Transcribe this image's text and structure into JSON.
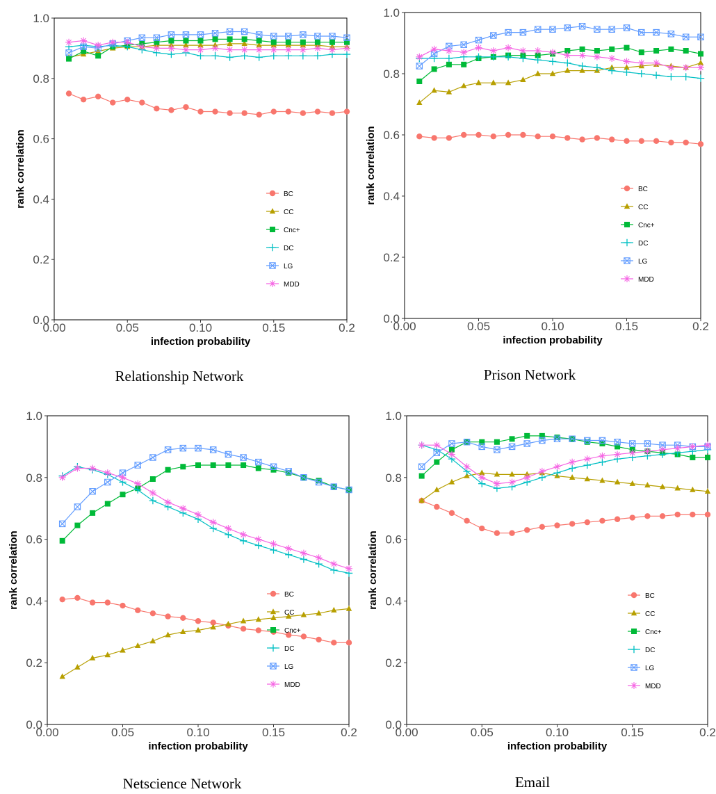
{
  "chart_data": [
    {
      "type": "line",
      "caption": "Relationship Network",
      "xlabel": "infection probability",
      "ylabel": "rank correlation",
      "xlim": [
        0,
        0.2
      ],
      "ylim": [
        0,
        1.0
      ],
      "xticks": [
        "0.00",
        "0.05",
        "0.10",
        "0.15",
        "0.2"
      ],
      "yticks": [
        "0.0",
        "0.2",
        "0.4",
        "0.6",
        "0.8",
        "1.0"
      ],
      "legend_position": "bottom-right",
      "x": [
        0.01,
        0.02,
        0.03,
        0.04,
        0.05,
        0.06,
        0.07,
        0.08,
        0.09,
        0.1,
        0.11,
        0.12,
        0.13,
        0.14,
        0.15,
        0.16,
        0.17,
        0.18,
        0.19,
        0.2
      ],
      "series": [
        {
          "name": "BC",
          "values": [
            0.75,
            0.73,
            0.74,
            0.72,
            0.73,
            0.72,
            0.7,
            0.695,
            0.705,
            0.69,
            0.69,
            0.685,
            0.685,
            0.68,
            0.69,
            0.69,
            0.685,
            0.69,
            0.685,
            0.69
          ]
        },
        {
          "name": "CC",
          "values": [
            0.87,
            0.88,
            0.89,
            0.9,
            0.905,
            0.905,
            0.91,
            0.91,
            0.91,
            0.91,
            0.91,
            0.915,
            0.915,
            0.91,
            0.91,
            0.91,
            0.91,
            0.91,
            0.905,
            0.905
          ]
        },
        {
          "name": "Cnc+",
          "values": [
            0.865,
            0.89,
            0.875,
            0.905,
            0.91,
            0.915,
            0.92,
            0.925,
            0.925,
            0.925,
            0.93,
            0.93,
            0.93,
            0.925,
            0.92,
            0.92,
            0.92,
            0.92,
            0.92,
            0.92
          ]
        },
        {
          "name": "DC",
          "values": [
            0.905,
            0.91,
            0.905,
            0.91,
            0.905,
            0.895,
            0.885,
            0.88,
            0.885,
            0.875,
            0.875,
            0.87,
            0.875,
            0.87,
            0.875,
            0.875,
            0.875,
            0.875,
            0.88,
            0.88
          ]
        },
        {
          "name": "LG",
          "values": [
            0.885,
            0.905,
            0.9,
            0.915,
            0.925,
            0.935,
            0.935,
            0.945,
            0.945,
            0.945,
            0.95,
            0.955,
            0.955,
            0.945,
            0.94,
            0.94,
            0.945,
            0.94,
            0.94,
            0.935
          ]
        },
        {
          "name": "MDD",
          "values": [
            0.92,
            0.925,
            0.91,
            0.92,
            0.92,
            0.905,
            0.9,
            0.9,
            0.895,
            0.895,
            0.9,
            0.895,
            0.895,
            0.895,
            0.895,
            0.895,
            0.895,
            0.9,
            0.895,
            0.9
          ]
        }
      ]
    },
    {
      "type": "line",
      "caption": "Prison Network",
      "xlabel": "infection probability",
      "ylabel": "rank correlation",
      "xlim": [
        0,
        0.2
      ],
      "ylim": [
        0,
        1.0
      ],
      "xticks": [
        "0.00",
        "0.05",
        "0.10",
        "0.15",
        "0.2"
      ],
      "yticks": [
        "0.0",
        "0.2",
        "0.4",
        "0.6",
        "0.8",
        "1.0"
      ],
      "legend_position": "bottom-right",
      "x": [
        0.01,
        0.02,
        0.03,
        0.04,
        0.05,
        0.06,
        0.07,
        0.08,
        0.09,
        0.1,
        0.11,
        0.12,
        0.13,
        0.14,
        0.15,
        0.16,
        0.17,
        0.18,
        0.19,
        0.2
      ],
      "series": [
        {
          "name": "BC",
          "values": [
            0.595,
            0.59,
            0.59,
            0.6,
            0.6,
            0.595,
            0.6,
            0.6,
            0.595,
            0.595,
            0.59,
            0.585,
            0.59,
            0.585,
            0.58,
            0.58,
            0.58,
            0.575,
            0.575,
            0.57
          ]
        },
        {
          "name": "CC",
          "values": [
            0.705,
            0.745,
            0.74,
            0.76,
            0.77,
            0.77,
            0.77,
            0.78,
            0.8,
            0.8,
            0.81,
            0.81,
            0.81,
            0.82,
            0.82,
            0.825,
            0.83,
            0.825,
            0.82,
            0.835
          ]
        },
        {
          "name": "Cnc+",
          "values": [
            0.775,
            0.815,
            0.83,
            0.83,
            0.85,
            0.855,
            0.86,
            0.86,
            0.86,
            0.865,
            0.875,
            0.88,
            0.875,
            0.88,
            0.885,
            0.87,
            0.875,
            0.88,
            0.875,
            0.865
          ]
        },
        {
          "name": "DC",
          "values": [
            0.85,
            0.85,
            0.85,
            0.855,
            0.855,
            0.855,
            0.855,
            0.85,
            0.845,
            0.84,
            0.835,
            0.825,
            0.82,
            0.81,
            0.805,
            0.8,
            0.795,
            0.79,
            0.79,
            0.785
          ]
        },
        {
          "name": "LG",
          "values": [
            0.825,
            0.865,
            0.89,
            0.895,
            0.91,
            0.925,
            0.935,
            0.935,
            0.945,
            0.945,
            0.95,
            0.955,
            0.945,
            0.945,
            0.95,
            0.935,
            0.935,
            0.93,
            0.92,
            0.92
          ]
        },
        {
          "name": "MDD",
          "values": [
            0.855,
            0.88,
            0.875,
            0.87,
            0.885,
            0.875,
            0.885,
            0.875,
            0.875,
            0.87,
            0.86,
            0.86,
            0.855,
            0.85,
            0.84,
            0.835,
            0.835,
            0.82,
            0.82,
            0.82
          ]
        }
      ]
    },
    {
      "type": "line",
      "caption": "Netscience Network",
      "xlabel": "infection probability",
      "ylabel": "rank correlation",
      "xlim": [
        0,
        0.2
      ],
      "ylim": [
        0,
        1.0
      ],
      "xticks": [
        "0.00",
        "0.05",
        "0.10",
        "0.15",
        "0.2"
      ],
      "yticks": [
        "0.0",
        "0.2",
        "0.4",
        "0.6",
        "0.8",
        "1.0"
      ],
      "legend_position": "bottom-right",
      "x": [
        0.01,
        0.02,
        0.03,
        0.04,
        0.05,
        0.06,
        0.07,
        0.08,
        0.09,
        0.1,
        0.11,
        0.12,
        0.13,
        0.14,
        0.15,
        0.16,
        0.17,
        0.18,
        0.19,
        0.2
      ],
      "series": [
        {
          "name": "BC",
          "values": [
            0.405,
            0.41,
            0.395,
            0.395,
            0.385,
            0.37,
            0.36,
            0.35,
            0.345,
            0.335,
            0.33,
            0.32,
            0.31,
            0.305,
            0.3,
            0.29,
            0.285,
            0.275,
            0.265,
            0.265
          ]
        },
        {
          "name": "CC",
          "values": [
            0.155,
            0.185,
            0.215,
            0.225,
            0.24,
            0.255,
            0.27,
            0.29,
            0.3,
            0.305,
            0.315,
            0.325,
            0.335,
            0.34,
            0.345,
            0.35,
            0.355,
            0.36,
            0.37,
            0.375
          ]
        },
        {
          "name": "Cnc+",
          "values": [
            0.595,
            0.645,
            0.685,
            0.715,
            0.745,
            0.765,
            0.795,
            0.825,
            0.835,
            0.84,
            0.84,
            0.84,
            0.84,
            0.83,
            0.825,
            0.815,
            0.8,
            0.79,
            0.77,
            0.76
          ]
        },
        {
          "name": "DC",
          "values": [
            0.805,
            0.835,
            0.825,
            0.81,
            0.785,
            0.76,
            0.725,
            0.705,
            0.685,
            0.665,
            0.635,
            0.615,
            0.595,
            0.58,
            0.565,
            0.55,
            0.535,
            0.52,
            0.5,
            0.49
          ]
        },
        {
          "name": "LG",
          "values": [
            0.65,
            0.705,
            0.755,
            0.785,
            0.815,
            0.84,
            0.865,
            0.89,
            0.895,
            0.895,
            0.89,
            0.875,
            0.865,
            0.85,
            0.835,
            0.82,
            0.8,
            0.785,
            0.77,
            0.76
          ]
        },
        {
          "name": "MDD",
          "values": [
            0.8,
            0.83,
            0.83,
            0.815,
            0.8,
            0.78,
            0.75,
            0.72,
            0.7,
            0.68,
            0.655,
            0.635,
            0.615,
            0.6,
            0.585,
            0.57,
            0.555,
            0.54,
            0.52,
            0.505
          ]
        }
      ]
    },
    {
      "type": "line",
      "caption": "Email",
      "xlabel": "infection probability",
      "ylabel": "rank correlation",
      "xlim": [
        0,
        0.2
      ],
      "ylim": [
        0,
        1.0
      ],
      "xticks": [
        "0.00",
        "0.05",
        "0.10",
        "0.15",
        "0.2"
      ],
      "yticks": [
        "0.0",
        "0.2",
        "0.4",
        "0.6",
        "0.8",
        "1.0"
      ],
      "legend_position": "bottom-right",
      "x": [
        0.01,
        0.02,
        0.03,
        0.04,
        0.05,
        0.06,
        0.07,
        0.08,
        0.09,
        0.1,
        0.11,
        0.12,
        0.13,
        0.14,
        0.15,
        0.16,
        0.17,
        0.18,
        0.19,
        0.2
      ],
      "series": [
        {
          "name": "BC",
          "values": [
            0.725,
            0.705,
            0.685,
            0.66,
            0.635,
            0.62,
            0.62,
            0.63,
            0.64,
            0.645,
            0.65,
            0.655,
            0.66,
            0.665,
            0.67,
            0.675,
            0.675,
            0.68,
            0.68,
            0.68
          ]
        },
        {
          "name": "CC",
          "values": [
            0.725,
            0.76,
            0.785,
            0.805,
            0.815,
            0.81,
            0.81,
            0.81,
            0.815,
            0.805,
            0.8,
            0.795,
            0.79,
            0.785,
            0.78,
            0.775,
            0.77,
            0.765,
            0.76,
            0.755
          ]
        },
        {
          "name": "Cnc+",
          "values": [
            0.805,
            0.85,
            0.89,
            0.915,
            0.915,
            0.915,
            0.925,
            0.935,
            0.935,
            0.93,
            0.925,
            0.915,
            0.91,
            0.9,
            0.89,
            0.885,
            0.88,
            0.875,
            0.865,
            0.865
          ]
        },
        {
          "name": "DC",
          "values": [
            0.905,
            0.89,
            0.86,
            0.82,
            0.78,
            0.765,
            0.77,
            0.785,
            0.8,
            0.815,
            0.83,
            0.84,
            0.85,
            0.86,
            0.865,
            0.87,
            0.875,
            0.88,
            0.885,
            0.89
          ]
        },
        {
          "name": "LG",
          "values": [
            0.835,
            0.88,
            0.91,
            0.915,
            0.9,
            0.89,
            0.9,
            0.91,
            0.92,
            0.925,
            0.925,
            0.92,
            0.92,
            0.915,
            0.91,
            0.91,
            0.905,
            0.905,
            0.9,
            0.9
          ]
        },
        {
          "name": "MDD",
          "values": [
            0.905,
            0.905,
            0.875,
            0.835,
            0.8,
            0.78,
            0.785,
            0.8,
            0.82,
            0.835,
            0.85,
            0.86,
            0.87,
            0.875,
            0.88,
            0.885,
            0.89,
            0.895,
            0.9,
            0.905
          ]
        }
      ]
    }
  ],
  "series_colors": {
    "BC": "#F8766D",
    "CC": "#B79F00",
    "Cnc+": "#00BA38",
    "DC": "#00BFC4",
    "LG": "#619CFF",
    "MDD": "#F564E3"
  },
  "series_markers": {
    "BC": "circle",
    "CC": "triangle",
    "Cnc+": "square",
    "DC": "plus",
    "LG": "square-x",
    "MDD": "asterisk"
  }
}
